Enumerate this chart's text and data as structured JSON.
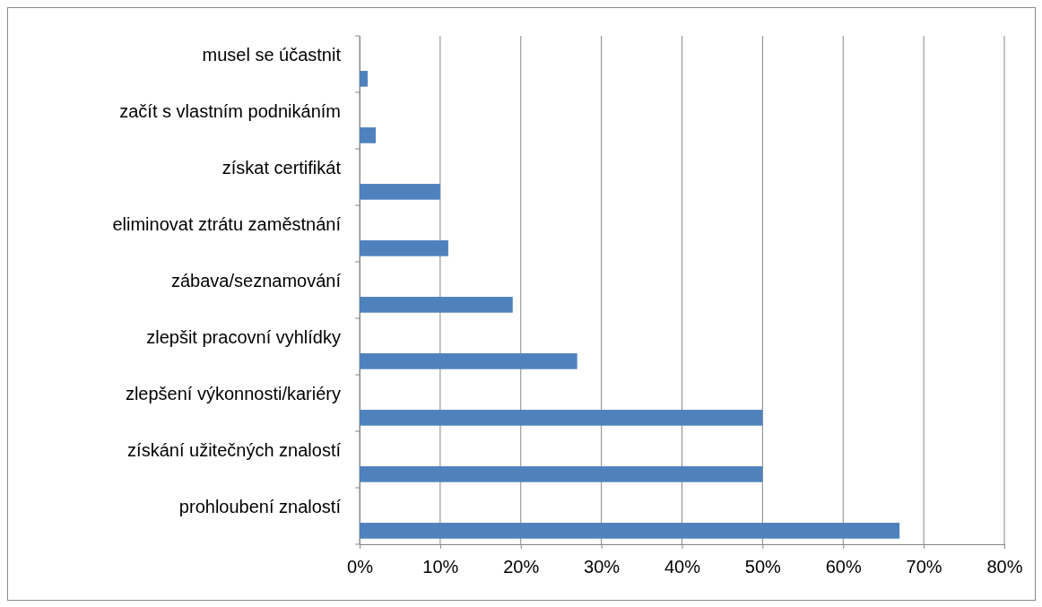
{
  "chart_data": {
    "type": "bar",
    "orientation": "horizontal",
    "categories": [
      "musel se účastnit",
      "začít s vlastním podnikáním",
      "získat certifikát",
      "eliminovat ztrátu zaměstnání",
      "zábava/seznamování",
      "zlepšit pracovní vyhlídky",
      "zlepšení výkonnosti/kariéry",
      "získání užitečných znalostí",
      "prohloubení znalostí"
    ],
    "values": [
      1,
      2,
      10,
      11,
      19,
      27,
      50,
      50,
      67
    ],
    "color": "#4f81bd",
    "xlim": [
      0,
      80
    ],
    "xticks": [
      {
        "value": 0,
        "label": "0%"
      },
      {
        "value": 10,
        "label": "10%"
      },
      {
        "value": 20,
        "label": "20%"
      },
      {
        "value": 30,
        "label": "30%"
      },
      {
        "value": 40,
        "label": "40%"
      },
      {
        "value": 50,
        "label": "50%"
      },
      {
        "value": 60,
        "label": "60%"
      },
      {
        "value": 70,
        "label": "70%"
      },
      {
        "value": 80,
        "label": "80%"
      }
    ],
    "grid": "x"
  }
}
